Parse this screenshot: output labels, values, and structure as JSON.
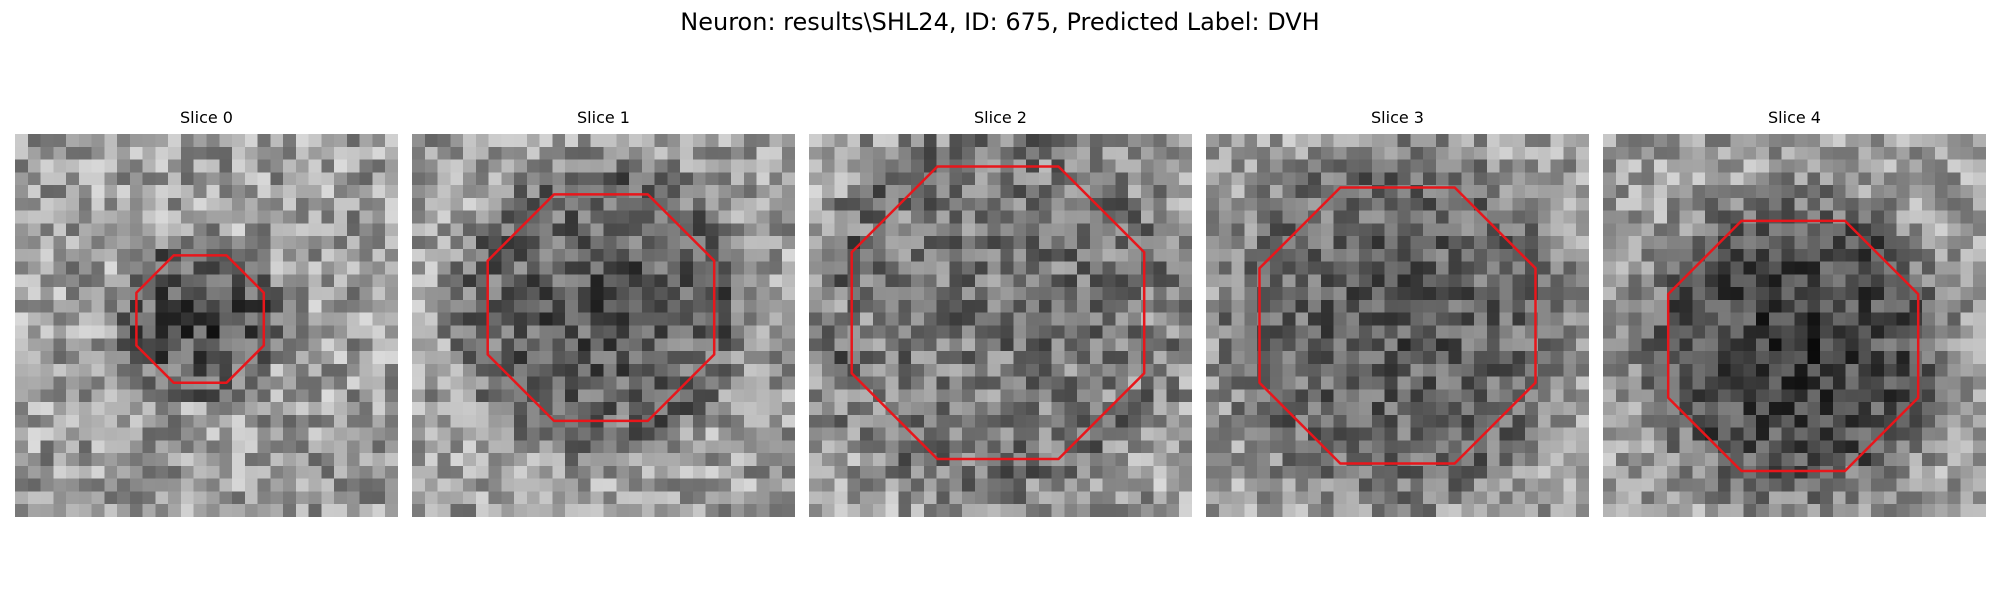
{
  "title": "Neuron: results\\SHL24, ID: 675, Predicted Label: DVH",
  "outline_color": "#e8161b",
  "slices": [
    {
      "label": "Slice 0"
    },
    {
      "label": "Slice 1"
    },
    {
      "label": "Slice 2"
    },
    {
      "label": "Slice 3"
    },
    {
      "label": "Slice 4"
    }
  ]
}
